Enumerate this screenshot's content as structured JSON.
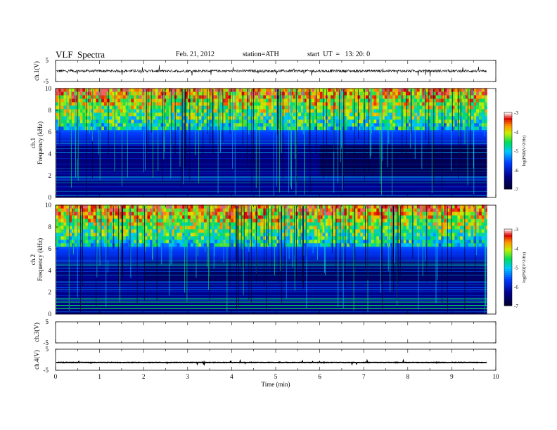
{
  "header": {
    "title": "VLF  Spectra",
    "date": "Feb. 21, 2012",
    "station": "station=ATH",
    "start": "start  UT  =   13: 20: 0"
  },
  "chart_data": [
    {
      "type": "line",
      "name": "ch1-waveform",
      "ylabel": "ch.1(V)",
      "ylim": [
        -5,
        5
      ],
      "yticks": [
        "5",
        "-5"
      ],
      "xlim": [
        0,
        10
      ],
      "data_end": 9.8,
      "series": [
        {
          "values_description": "noise around 0 V",
          "mean": 0,
          "noise_amplitude": 1.2
        }
      ]
    },
    {
      "type": "heatmap",
      "name": "ch1-spectrogram",
      "ylabel": "ch.1\nFrequency  (kHz)",
      "ylabel_lines": [
        "ch.1",
        "Frequency  (kHz)"
      ],
      "ylim": [
        0,
        10
      ],
      "yticks": [
        "0",
        "2",
        "4",
        "6",
        "8",
        "10"
      ],
      "xlim": [
        0,
        10
      ],
      "data_end": 9.8,
      "colorbar": {
        "label": "log(PSD(V^2/Hz)",
        "range": [
          -7,
          -3
        ],
        "ticks": [
          "-3",
          "-4",
          "-5",
          "-6",
          "-7"
        ]
      }
    },
    {
      "type": "heatmap",
      "name": "ch2-spectrogram",
      "ylabel_lines": [
        "ch.2",
        "Frequency  (kHz)"
      ],
      "ylim": [
        0,
        10
      ],
      "yticks": [
        "0",
        "2",
        "4",
        "6",
        "8",
        "10"
      ],
      "xlim": [
        0,
        10
      ],
      "data_end": 9.8,
      "colorbar": {
        "label": "log(PSD(V^2/Hz)",
        "range": [
          -7,
          -3
        ],
        "ticks": [
          "-3",
          "-4",
          "-5",
          "-6",
          "-7"
        ]
      }
    },
    {
      "type": "line",
      "name": "ch3-waveform",
      "ylabel": "ch.3(V)",
      "ylim": [
        -5,
        5
      ],
      "yticks": [
        "5",
        "-5"
      ],
      "xlim": [
        0,
        10
      ],
      "series": []
    },
    {
      "type": "line",
      "name": "ch4-waveform",
      "ylabel": "ch.4(V)",
      "ylim": [
        -5,
        5
      ],
      "yticks": [
        "5",
        "-5"
      ],
      "xlim": [
        0,
        10
      ],
      "data_end": 9.8,
      "series": [
        {
          "values_description": "flat line near -1.3 V",
          "mean": -1.3,
          "noise_amplitude": 0.2
        }
      ]
    }
  ],
  "xaxis": {
    "label": "Time  (min)",
    "ticks": [
      "0",
      "1",
      "2",
      "3",
      "4",
      "5",
      "6",
      "7",
      "8",
      "9",
      "10"
    ]
  }
}
